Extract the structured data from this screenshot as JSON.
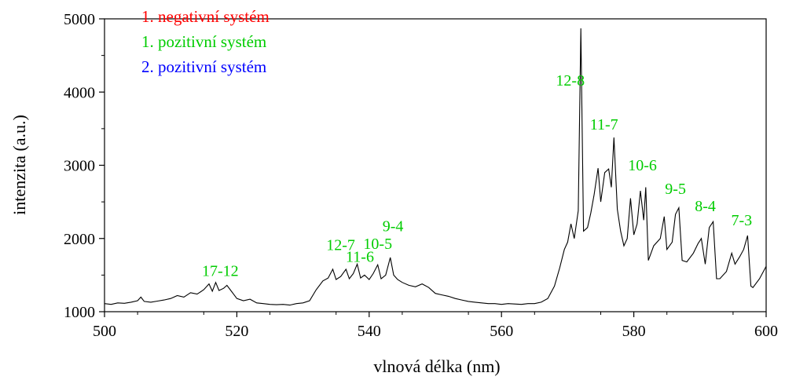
{
  "chart_data": {
    "type": "line",
    "title": "",
    "xlabel": "vlnová délka (nm)",
    "ylabel": "intenzita (a.u.)",
    "xlim": [
      500,
      600
    ],
    "ylim": [
      1000,
      5000
    ],
    "x_ticks": [
      500,
      520,
      540,
      560,
      580,
      600
    ],
    "y_ticks": [
      1000,
      2000,
      3000,
      4000,
      5000
    ],
    "x_tick_labels": [
      "500",
      "520",
      "540",
      "560",
      "580",
      "600"
    ],
    "y_tick_labels": [
      "1000",
      "2000",
      "3000",
      "4000",
      "5000"
    ],
    "grid": false,
    "legend": {
      "position": "top-left",
      "entries": [
        {
          "label": "1. negativní systém",
          "color": "#ff0000"
        },
        {
          "label": "1. pozitivní systém",
          "color": "#00cc00"
        },
        {
          "label": "2. pozitivní systém",
          "color": "#0000ff"
        }
      ]
    },
    "series": [
      {
        "color": "#000000",
        "points": [
          [
            500,
            1110
          ],
          [
            501,
            1100
          ],
          [
            502,
            1120
          ],
          [
            503,
            1115
          ],
          [
            504,
            1130
          ],
          [
            505,
            1150
          ],
          [
            505.5,
            1200
          ],
          [
            506,
            1140
          ],
          [
            507,
            1130
          ],
          [
            508,
            1145
          ],
          [
            509,
            1160
          ],
          [
            510,
            1180
          ],
          [
            511,
            1220
          ],
          [
            512,
            1200
          ],
          [
            513,
            1260
          ],
          [
            514,
            1240
          ],
          [
            515,
            1300
          ],
          [
            515.8,
            1380
          ],
          [
            516.3,
            1280
          ],
          [
            516.8,
            1400
          ],
          [
            517.3,
            1290
          ],
          [
            518,
            1320
          ],
          [
            518.5,
            1360
          ],
          [
            519,
            1300
          ],
          [
            519.5,
            1240
          ],
          [
            520,
            1180
          ],
          [
            521,
            1150
          ],
          [
            522,
            1170
          ],
          [
            523,
            1120
          ],
          [
            524,
            1110
          ],
          [
            525,
            1100
          ],
          [
            526,
            1095
          ],
          [
            527,
            1100
          ],
          [
            528,
            1090
          ],
          [
            529,
            1110
          ],
          [
            530,
            1120
          ],
          [
            531,
            1150
          ],
          [
            532,
            1300
          ],
          [
            533,
            1420
          ],
          [
            533.8,
            1460
          ],
          [
            534.5,
            1580
          ],
          [
            535,
            1440
          ],
          [
            535.7,
            1480
          ],
          [
            536.5,
            1580
          ],
          [
            537,
            1450
          ],
          [
            537.6,
            1520
          ],
          [
            538.2,
            1650
          ],
          [
            538.7,
            1460
          ],
          [
            539.3,
            1500
          ],
          [
            540,
            1440
          ],
          [
            540.6,
            1520
          ],
          [
            541.3,
            1640
          ],
          [
            541.8,
            1450
          ],
          [
            542.5,
            1500
          ],
          [
            543.2,
            1740
          ],
          [
            543.7,
            1500
          ],
          [
            544.3,
            1440
          ],
          [
            545,
            1400
          ],
          [
            546,
            1360
          ],
          [
            547,
            1340
          ],
          [
            548,
            1380
          ],
          [
            549,
            1330
          ],
          [
            550,
            1250
          ],
          [
            551,
            1230
          ],
          [
            552,
            1210
          ],
          [
            553,
            1180
          ],
          [
            554,
            1160
          ],
          [
            555,
            1140
          ],
          [
            556,
            1130
          ],
          [
            557,
            1120
          ],
          [
            558,
            1110
          ],
          [
            559,
            1110
          ],
          [
            560,
            1100
          ],
          [
            561,
            1110
          ],
          [
            562,
            1105
          ],
          [
            563,
            1100
          ],
          [
            564,
            1110
          ],
          [
            565,
            1110
          ],
          [
            566,
            1130
          ],
          [
            567,
            1180
          ],
          [
            568,
            1350
          ],
          [
            568.8,
            1600
          ],
          [
            569.5,
            1850
          ],
          [
            570,
            1950
          ],
          [
            570.5,
            2200
          ],
          [
            571,
            2000
          ],
          [
            571.6,
            2380
          ],
          [
            572,
            4870
          ],
          [
            572.4,
            2100
          ],
          [
            573,
            2150
          ],
          [
            573.5,
            2350
          ],
          [
            574,
            2600
          ],
          [
            574.6,
            2960
          ],
          [
            575,
            2500
          ],
          [
            575.6,
            2900
          ],
          [
            576.2,
            2950
          ],
          [
            576.6,
            2700
          ],
          [
            577,
            3380
          ],
          [
            577.5,
            2400
          ],
          [
            578,
            2100
          ],
          [
            578.5,
            1900
          ],
          [
            579,
            2000
          ],
          [
            579.5,
            2550
          ],
          [
            580,
            2050
          ],
          [
            580.5,
            2200
          ],
          [
            581,
            2650
          ],
          [
            581.5,
            2250
          ],
          [
            581.8,
            2700
          ],
          [
            582.2,
            1700
          ],
          [
            583,
            1900
          ],
          [
            584,
            2000
          ],
          [
            584.6,
            2300
          ],
          [
            585,
            1850
          ],
          [
            585.8,
            1950
          ],
          [
            586.3,
            2330
          ],
          [
            586.8,
            2420
          ],
          [
            587.3,
            1700
          ],
          [
            588,
            1680
          ],
          [
            589,
            1800
          ],
          [
            589.7,
            1930
          ],
          [
            590.2,
            2000
          ],
          [
            590.8,
            1650
          ],
          [
            591.4,
            2150
          ],
          [
            592,
            2230
          ],
          [
            592.5,
            1450
          ],
          [
            593,
            1450
          ],
          [
            594,
            1550
          ],
          [
            594.8,
            1800
          ],
          [
            595.3,
            1650
          ],
          [
            596,
            1750
          ],
          [
            596.6,
            1850
          ],
          [
            597.2,
            2040
          ],
          [
            597.7,
            1350
          ],
          [
            598,
            1330
          ],
          [
            599,
            1450
          ],
          [
            600,
            1620
          ]
        ]
      }
    ],
    "annotations": [
      {
        "text": "12-8",
        "x": 570.4,
        "y": 4090,
        "color": "#00cc00"
      },
      {
        "text": "11-7",
        "x": 575.5,
        "y": 3490,
        "color": "#00cc00"
      },
      {
        "text": "10-6",
        "x": 581.3,
        "y": 2930,
        "color": "#00cc00"
      },
      {
        "text": "9-5",
        "x": 586.3,
        "y": 2610,
        "color": "#00cc00"
      },
      {
        "text": "8-4",
        "x": 590.8,
        "y": 2370,
        "color": "#00cc00"
      },
      {
        "text": "7-3",
        "x": 596.3,
        "y": 2180,
        "color": "#00cc00"
      },
      {
        "text": "9-4",
        "x": 543.6,
        "y": 2100,
        "color": "#00cc00"
      },
      {
        "text": "10-5",
        "x": 541.3,
        "y": 1860,
        "color": "#00cc00"
      },
      {
        "text": "12-7",
        "x": 535.7,
        "y": 1840,
        "color": "#00cc00"
      },
      {
        "text": "11-6",
        "x": 538.6,
        "y": 1680,
        "color": "#00cc00"
      },
      {
        "text": "17-12",
        "x": 517.5,
        "y": 1490,
        "color": "#00cc00"
      }
    ]
  }
}
